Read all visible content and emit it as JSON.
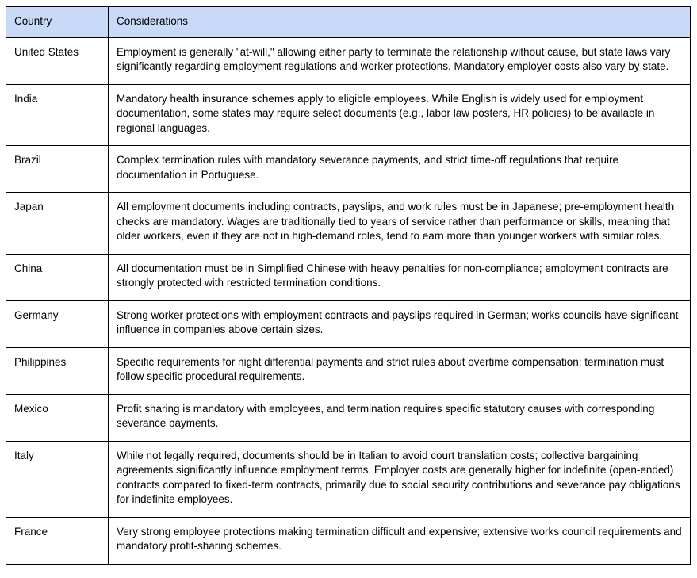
{
  "colors": {
    "page_bg": "#ffffff",
    "header_bg": "#c9daf8",
    "border_color": "#000000",
    "text_color": "#000000"
  },
  "table": {
    "headers": {
      "country": "Country",
      "considerations": "Considerations"
    },
    "rows": [
      {
        "country": "United States",
        "considerations": "Employment is generally \"at-will,\" allowing either party to terminate the relationship without cause, but state laws vary significantly regarding employment regulations and worker protections. Mandatory employer costs also vary by state."
      },
      {
        "country": "India",
        "considerations": "Mandatory health insurance schemes apply to eligible employees. While English is widely used for employment documentation, some states may require select documents (e.g., labor law posters, HR policies) to be available in regional languages."
      },
      {
        "country": "Brazil",
        "considerations": "Complex termination rules with mandatory severance payments, and strict time-off regulations that require documentation in Portuguese."
      },
      {
        "country": "Japan",
        "considerations": "All employment documents including contracts, payslips, and work rules must be in Japanese; pre-employment health checks are mandatory. Wages are traditionally tied to years of service rather than performance or skills, meaning that older workers, even if they are not in high-demand roles, tend to earn more than younger workers with similar roles."
      },
      {
        "country": "China",
        "considerations": "All documentation must be in Simplified Chinese with heavy penalties for non-compliance; employment contracts are strongly protected with restricted termination conditions."
      },
      {
        "country": "Germany",
        "considerations": "Strong worker protections with employment contracts and payslips required in German; works councils have significant influence in companies above certain sizes."
      },
      {
        "country": "Philippines",
        "considerations": "Specific requirements for night differential payments and strict rules about overtime compensation; termination must follow specific procedural requirements."
      },
      {
        "country": "Mexico",
        "considerations": "Profit sharing is mandatory with employees, and termination requires specific statutory causes with corresponding severance payments."
      },
      {
        "country": "Italy",
        "considerations": "While not legally required, documents should be in Italian to avoid court translation costs; collective bargaining agreements significantly influence employment terms. Employer costs are generally higher for indefinite (open-ended) contracts compared to fixed-term contracts, primarily due to social security contributions and severance pay obligations for indefinite employees."
      },
      {
        "country": "France",
        "considerations": "Very strong employee protections making termination difficult and expensive; extensive works council requirements and mandatory profit-sharing schemes."
      }
    ]
  }
}
